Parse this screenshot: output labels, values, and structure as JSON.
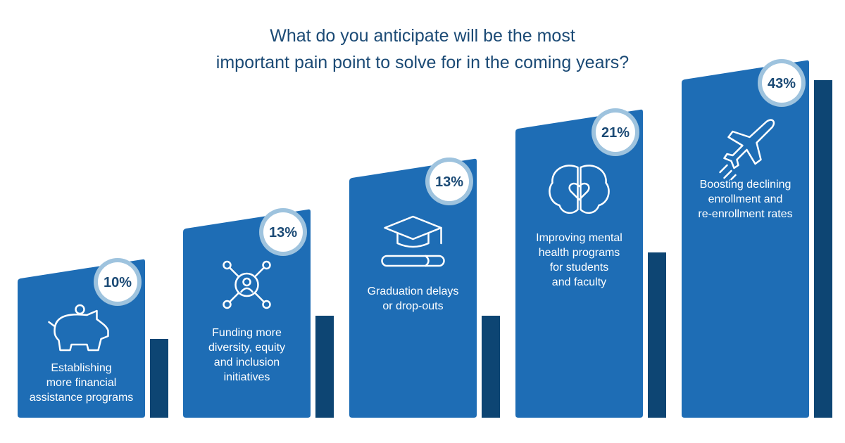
{
  "title_lines": [
    "What do you anticipate will be the most",
    "important pain point to solve for in the coming years?"
  ],
  "colors": {
    "bar_front": "#1e6db5",
    "bar_side": "#0d4573",
    "title": "#1b4a75",
    "badge_ring": "#9ec3de",
    "badge_text": "#1b4a75",
    "label": "#ffffff",
    "icon": "#ffffff"
  },
  "chart_data": {
    "type": "bar",
    "categories": [
      [
        "Establishing",
        "more financial",
        "assistance programs"
      ],
      [
        "Funding more",
        "diversity, equity",
        "and inclusion",
        "initiatives"
      ],
      [
        "Graduation delays",
        "or drop-outs"
      ],
      [
        "Improving mental",
        "health programs",
        "for students",
        "and faculty"
      ],
      [
        "Boosting declining",
        "enrollment and",
        "re-enrollment rates"
      ]
    ],
    "values": [
      10,
      13,
      13,
      21,
      43
    ],
    "value_labels": [
      "10%",
      "13%",
      "13%",
      "21%",
      "43%"
    ],
    "icons": [
      "piggy-bank-icon",
      "network-person-icon",
      "graduation-cap-icon",
      "brain-heart-icon",
      "airplane-icon"
    ],
    "title": "What do you anticipate will be the most important pain point to solve for in the coming years?",
    "xlabel": "",
    "ylabel": "",
    "grid": false,
    "legend": "none"
  }
}
